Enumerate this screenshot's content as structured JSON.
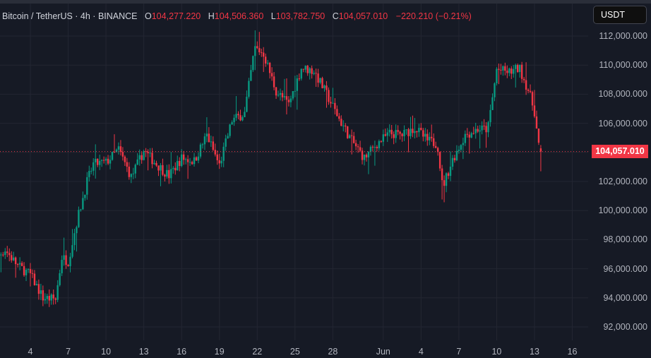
{
  "header": {
    "symbol": "Bitcoin / TetherUS · 4h · BINANCE",
    "open_key": "O",
    "open": "104,277.220",
    "high_key": "H",
    "high": "104,506.360",
    "low_key": "L",
    "low": "103,782.750",
    "close_key": "C",
    "close": "104,057.010",
    "change": "−220.210 (−0.21%)"
  },
  "price_axis": {
    "currency_button": "USDT",
    "last_price_label": "104,057.010",
    "labels": [
      "112,000.000",
      "110,000.000",
      "108,000.000",
      "106,000.000",
      "104,000.000",
      "102,000.000",
      "100,000.000",
      "98,000.000",
      "96,000.000",
      "94,000.000",
      "92,000.000"
    ]
  },
  "time_axis": {
    "labels": [
      "4",
      "7",
      "10",
      "13",
      "16",
      "19",
      "22",
      "25",
      "28",
      "Jun",
      "4",
      "7",
      "10",
      "13",
      "16"
    ]
  },
  "colors": {
    "background": "#161a25",
    "grid": "#232632",
    "up": "#089981",
    "down": "#f23645",
    "text": "#b2b5be"
  },
  "chart_data": {
    "type": "candlestick",
    "title": "Bitcoin / TetherUS · 4h · BINANCE",
    "quote_currency": "USDT",
    "interval": "4h",
    "ylim": [
      91000,
      113000
    ],
    "y_ticks": [
      92000,
      94000,
      96000,
      98000,
      100000,
      102000,
      104000,
      106000,
      108000,
      110000,
      112000
    ],
    "x_ticks": [
      "4",
      "7",
      "10",
      "13",
      "16",
      "19",
      "22",
      "25",
      "28",
      "Jun",
      "4",
      "7",
      "10",
      "13",
      "16"
    ],
    "last_price": 104057.01,
    "last_candle": {
      "open": 104277.22,
      "high": 104506.36,
      "low": 103782.75,
      "close": 104057.01,
      "change": -220.21,
      "change_pct": -0.21
    },
    "grid": true,
    "close_path_by_day": [
      {
        "day": 1.0,
        "close": 96600
      },
      {
        "day": 2.0,
        "close": 97300
      },
      {
        "day": 3.0,
        "close": 96200
      },
      {
        "day": 4.0,
        "close": 95600
      },
      {
        "day": 5.0,
        "close": 94000
      },
      {
        "day": 6.0,
        "close": 93900
      },
      {
        "day": 6.5,
        "close": 96800
      },
      {
        "day": 7.0,
        "close": 96500
      },
      {
        "day": 7.7,
        "close": 99300
      },
      {
        "day": 8.5,
        "close": 102000
      },
      {
        "day": 9.0,
        "close": 103200
      },
      {
        "day": 10.0,
        "close": 103300
      },
      {
        "day": 11.0,
        "close": 104200
      },
      {
        "day": 12.0,
        "close": 102300
      },
      {
        "day": 13.0,
        "close": 104100
      },
      {
        "day": 14.0,
        "close": 103200
      },
      {
        "day": 15.0,
        "close": 102400
      },
      {
        "day": 16.0,
        "close": 103600
      },
      {
        "day": 17.0,
        "close": 103400
      },
      {
        "day": 18.0,
        "close": 105200
      },
      {
        "day": 19.0,
        "close": 103100
      },
      {
        "day": 20.0,
        "close": 106200
      },
      {
        "day": 21.0,
        "close": 106700
      },
      {
        "day": 21.8,
        "close": 111200
      },
      {
        "day": 22.5,
        "close": 110800
      },
      {
        "day": 23.5,
        "close": 108200
      },
      {
        "day": 24.5,
        "close": 107300
      },
      {
        "day": 25.5,
        "close": 109800
      },
      {
        "day": 26.5,
        "close": 109600
      },
      {
        "day": 27.5,
        "close": 108000
      },
      {
        "day": 28.5,
        "close": 106300
      },
      {
        "day": 29.5,
        "close": 104800
      },
      {
        "day": 30.5,
        "close": 103600
      },
      {
        "day": 31.5,
        "close": 104600
      },
      {
        "day": 32.5,
        "close": 105300
      },
      {
        "day": 33.5,
        "close": 105200
      },
      {
        "day": 34.5,
        "close": 105700
      },
      {
        "day": 35.5,
        "close": 104800
      },
      {
        "day": 36.3,
        "close": 104600
      },
      {
        "day": 36.7,
        "close": 101600
      },
      {
        "day": 37.5,
        "close": 103500
      },
      {
        "day": 38.5,
        "close": 105200
      },
      {
        "day": 39.5,
        "close": 105600
      },
      {
        "day": 40.3,
        "close": 105600
      },
      {
        "day": 41.0,
        "close": 109700
      },
      {
        "day": 42.0,
        "close": 109500
      },
      {
        "day": 42.8,
        "close": 109800
      },
      {
        "day": 43.5,
        "close": 108300
      },
      {
        "day": 44.0,
        "close": 106800
      },
      {
        "day": 44.3,
        "close": 104600
      },
      {
        "day": 44.5,
        "close": 104057
      }
    ]
  }
}
